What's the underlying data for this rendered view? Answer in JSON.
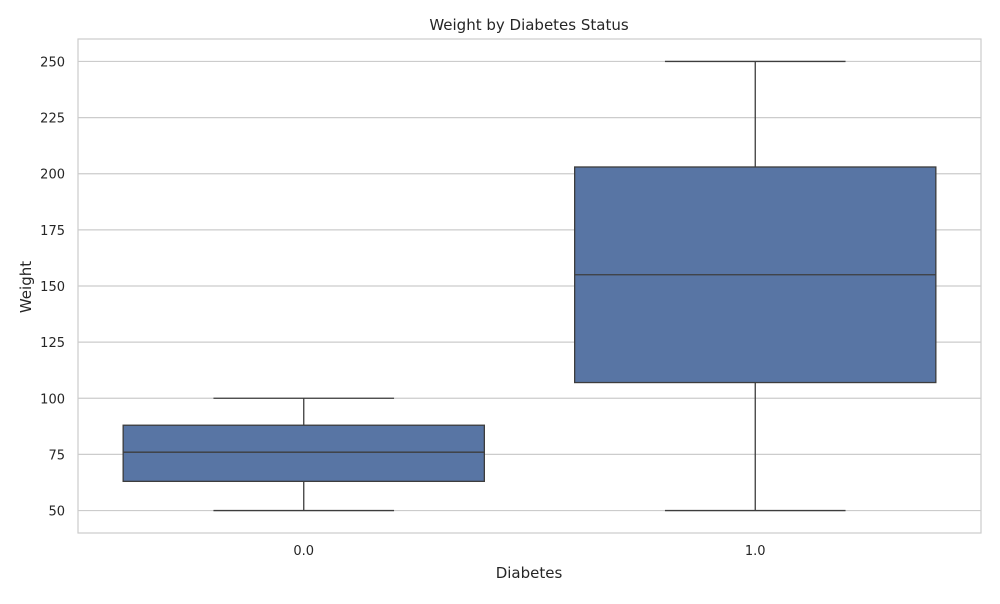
{
  "chart_data": {
    "type": "box",
    "title": "Weight by Diabetes Status",
    "xlabel": "Diabetes",
    "ylabel": "Weight",
    "categories": [
      "0.0",
      "1.0"
    ],
    "boxes": [
      {
        "category": "0.0",
        "whisker_low": 50,
        "q1": 63,
        "median": 76,
        "q3": 88,
        "whisker_high": 100
      },
      {
        "category": "1.0",
        "whisker_low": 50,
        "q1": 107,
        "median": 155,
        "q3": 203,
        "whisker_high": 250
      }
    ],
    "ylim": [
      40,
      260
    ],
    "yticks": [
      50,
      75,
      100,
      125,
      150,
      175,
      200,
      225,
      250
    ],
    "grid": true,
    "colors": {
      "box_fill": "#5875a4",
      "box_line": "#3d3d3d",
      "grid": "#cccccc",
      "spine": "#cccccc"
    }
  }
}
